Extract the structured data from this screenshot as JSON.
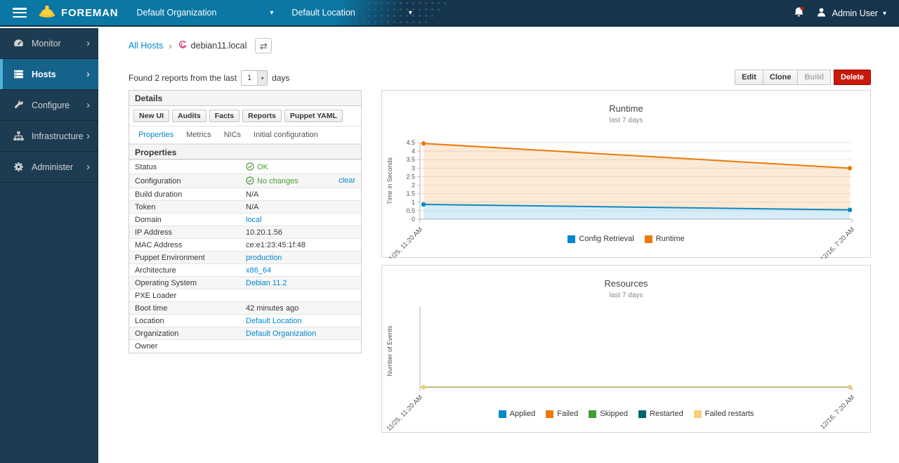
{
  "navbar": {
    "brand": "FOREMAN",
    "organization": "Default Organization",
    "location": "Default Location",
    "user": "Admin User",
    "colors": {
      "teal": "#0a77a4",
      "dark": "#16344c"
    }
  },
  "icons": {
    "caret_down": "▾",
    "chevron_right": "›",
    "breadcrumb_sep": "›",
    "switch_hosts": "⇄"
  },
  "sidebar": {
    "items": [
      {
        "label": "Monitor",
        "icon": "gauge-icon",
        "active": false
      },
      {
        "label": "Hosts",
        "icon": "servers-icon",
        "active": true
      },
      {
        "label": "Configure",
        "icon": "wrench-icon",
        "active": false
      },
      {
        "label": "Infrastructure",
        "icon": "sitemap-icon",
        "active": false
      },
      {
        "label": "Administer",
        "icon": "gear-icon",
        "active": false
      }
    ]
  },
  "breadcrumb": {
    "parent": "All Hosts",
    "current": "debian11.local"
  },
  "toolbar": {
    "reports_text_before": "Found 2 reports from the last",
    "reports_days_value": "1",
    "reports_text_after": "days",
    "buttons": [
      {
        "label": "Edit",
        "style": "default"
      },
      {
        "label": "Clone",
        "style": "default"
      },
      {
        "label": "Build",
        "style": "disabled"
      },
      {
        "label": "Delete",
        "style": "danger"
      }
    ]
  },
  "details": {
    "title": "Details",
    "action_buttons": [
      "New UI",
      "Audits",
      "Facts",
      "Reports",
      "Puppet YAML"
    ],
    "tabs": [
      {
        "label": "Properties",
        "active": true
      },
      {
        "label": "Metrics",
        "active": false
      },
      {
        "label": "NICs",
        "active": false
      },
      {
        "label": "Initial configuration",
        "active": false
      }
    ],
    "properties_title": "Properties",
    "status_color": "#4b9f36",
    "rows": [
      {
        "label": "Status",
        "value": "OK",
        "type": "ok"
      },
      {
        "label": "Configuration",
        "value": "No changes",
        "type": "ok",
        "extra_link": "clear"
      },
      {
        "label": "Build duration",
        "value": "N/A",
        "type": "text"
      },
      {
        "label": "Token",
        "value": "N/A",
        "type": "text"
      },
      {
        "label": "Domain",
        "value": "local",
        "type": "link"
      },
      {
        "label": "IP Address",
        "value": "10.20.1.56",
        "type": "text"
      },
      {
        "label": "MAC Address",
        "value": "ce:e1:23:45:1f:48",
        "type": "text"
      },
      {
        "label": "Puppet Environment",
        "value": "production",
        "type": "link"
      },
      {
        "label": "Architecture",
        "value": "x86_64",
        "type": "link"
      },
      {
        "label": "Operating System",
        "value": "Debian 11.2",
        "type": "link"
      },
      {
        "label": "PXE Loader",
        "value": "",
        "type": "text"
      },
      {
        "label": "Boot time",
        "value": "42 minutes ago",
        "type": "text"
      },
      {
        "label": "Location",
        "value": "Default Location",
        "type": "link"
      },
      {
        "label": "Organization",
        "value": "Default Organization",
        "type": "link"
      },
      {
        "label": "Owner",
        "value": "",
        "type": "text"
      }
    ]
  },
  "chart_data": [
    {
      "type": "area",
      "title": "Runtime",
      "subtitle": "last 7 days",
      "ylabel": "Time in Seconds",
      "xlabel": "",
      "ylim": [
        0,
        4.5
      ],
      "yticks": [
        0,
        0.5,
        1,
        1.5,
        2,
        2.5,
        3,
        3.5,
        4,
        4.5
      ],
      "x_labels": [
        "11/25, 11:20 AM",
        "12/16, 7:20 AM"
      ],
      "grid": true,
      "legend_position": "bottom",
      "stacking": "stacked area; values are the plotted cumulative top lines",
      "series": [
        {
          "name": "Config Retrieval",
          "color": "#0088ce",
          "values": [
            0.87,
            0.55
          ]
        },
        {
          "name": "Runtime",
          "color": "#ec7a08",
          "values": [
            4.45,
            3.0
          ]
        }
      ]
    },
    {
      "type": "area",
      "title": "Resources",
      "subtitle": "last 7 days",
      "ylabel": "Number of Events",
      "xlabel": "",
      "ylim": [
        0,
        1
      ],
      "yticks": [],
      "x_labels": [
        "11/25, 11:20 AM",
        "12/16, 7:20 AM"
      ],
      "grid": false,
      "legend_position": "bottom",
      "stacking": "stacked area; all series flat at zero",
      "series": [
        {
          "name": "Applied",
          "color": "#0088ce",
          "values": [
            0,
            0
          ]
        },
        {
          "name": "Failed",
          "color": "#ec7a08",
          "values": [
            0,
            0
          ]
        },
        {
          "name": "Skipped",
          "color": "#3f9c35",
          "values": [
            0,
            0
          ]
        },
        {
          "name": "Restarted",
          "color": "#00656e",
          "values": [
            0,
            0
          ]
        },
        {
          "name": "Failed restarts",
          "color": "#f0d37a",
          "values": [
            0,
            0
          ]
        }
      ]
    }
  ]
}
